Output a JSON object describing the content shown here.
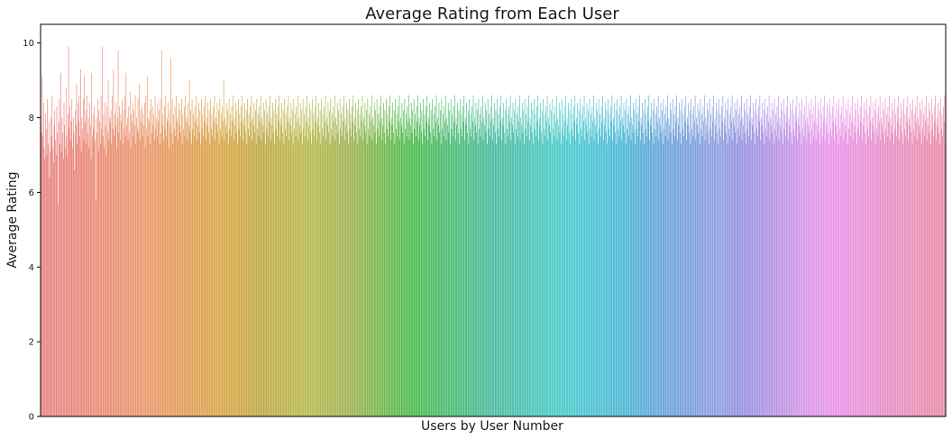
{
  "chart_data": {
    "type": "bar",
    "title": "Average Rating from Each User",
    "xlabel": "Users by User Number",
    "ylabel": "Average Rating",
    "ylim": [
      0,
      10.5
    ],
    "yticks": [
      0,
      2,
      4,
      6,
      8,
      10
    ],
    "ytick_labels": [
      "0",
      "2",
      "4",
      "6",
      "8",
      "10"
    ],
    "xticks_shown": false,
    "grid": false,
    "legend": "none",
    "palette": "husl hue gradient (red → orange → olive → green → teal → blue → purple → pink)",
    "bar_count": 1000,
    "values": [
      7.8,
      7.6,
      9.1,
      7.5,
      8.4,
      7.2,
      6.9,
      8.1,
      7.7,
      7.0,
      8.5,
      7.3,
      7.9,
      6.4,
      7.1,
      8.0,
      7.5,
      8.6,
      7.2,
      6.8,
      7.8,
      8.2,
      7.4,
      7.0,
      8.3,
      7.6,
      5.7,
      7.9,
      8.5,
      7.3,
      9.2,
      7.1,
      8.0,
      7.6,
      6.9,
      8.4,
      7.8,
      7.2,
      8.8,
      7.5,
      7.0,
      8.1,
      9.9,
      7.7,
      8.3,
      7.4,
      7.9,
      8.5,
      7.2,
      8.0,
      7.6,
      6.6,
      8.2,
      7.8,
      8.9,
      7.3,
      8.4,
      7.9,
      8.6,
      7.5,
      9.3,
      7.1,
      8.0,
      7.7,
      8.5,
      7.4,
      9.1,
      7.9,
      8.2,
      7.3,
      8.6,
      7.6,
      8.0,
      7.2,
      8.4,
      7.8,
      6.9,
      9.2,
      7.5,
      8.1,
      7.7,
      8.3,
      7.4,
      5.8,
      8.0,
      7.6,
      8.5,
      7.1,
      8.2,
      7.9,
      7.3,
      8.6,
      7.7,
      9.9,
      7.5,
      8.1,
      7.2,
      8.4,
      7.8,
      7.0,
      8.3,
      7.6,
      9.0,
      7.4,
      8.0,
      7.9,
      8.2,
      7.3,
      8.6,
      7.7,
      9.3,
      7.5,
      8.1,
      7.8,
      8.4,
      7.2,
      8.0,
      9.8,
      7.6,
      8.3,
      7.4,
      8.1,
      7.9,
      8.5,
      7.3,
      8.2,
      7.7,
      8.6,
      7.5,
      9.2,
      7.8,
      8.0,
      7.4,
      8.3,
      7.6,
      8.7,
      7.2,
      8.1,
      7.9,
      8.4,
      7.5,
      8.2,
      7.8,
      8.6,
      7.3,
      8.0,
      7.7,
      8.5,
      7.6,
      8.9,
      7.4,
      8.2,
      7.9,
      8.3,
      7.5,
      8.1,
      7.8,
      8.4,
      7.2,
      8.6,
      7.7,
      9.1,
      7.5,
      8.0,
      7.9,
      8.2,
      7.3,
      8.5,
      7.6,
      8.3,
      7.8,
      8.1,
      7.4,
      8.6,
      7.7,
      8.0,
      7.5,
      8.4,
      7.9,
      8.2,
      7.3,
      8.5,
      7.6,
      9.8,
      7.8,
      8.1,
      7.4,
      8.3,
      7.7,
      8.6,
      7.5,
      8.0,
      7.9,
      8.4,
      7.2,
      8.2,
      7.8,
      9.6,
      7.6,
      8.5,
      7.3,
      8.1,
      7.7,
      8.3,
      7.5,
      8.6,
      7.9,
      8.0,
      7.4,
      8.4,
      7.8,
      8.2,
      7.6,
      8.5,
      7.3,
      8.1,
      7.7,
      8.3,
      7.5,
      8.6,
      7.9,
      8.0,
      7.4,
      8.4,
      7.8,
      9.0,
      7.6,
      8.2,
      7.3,
      8.5,
      7.7,
      8.1,
      7.5,
      8.3,
      7.9,
      8.6,
      7.4,
      8.0,
      7.8,
      8.4,
      7.6,
      8.2,
      7.3,
      8.5,
      7.7,
      8.1,
      7.5,
      8.3,
      7.9,
      8.6,
      7.4,
      8.0,
      7.8,
      8.4,
      7.6,
      8.2,
      7.3,
      8.5,
      7.7,
      8.1,
      7.5,
      8.3,
      7.9,
      8.6,
      7.4,
      8.0,
      7.8,
      8.4,
      7.6,
      8.2,
      7.3,
      8.5,
      7.7,
      8.1,
      7.5,
      8.3,
      7.9,
      9.0,
      7.4,
      8.0,
      7.8,
      8.4,
      7.6,
      8.2,
      7.3,
      8.5,
      7.7,
      8.1,
      7.5,
      8.3,
      7.9,
      8.6,
      7.4,
      8.0,
      7.8,
      8.4,
      7.6,
      8.2,
      7.3,
      8.5,
      7.7,
      8.1,
      7.5,
      8.3,
      7.9,
      8.6,
      7.4,
      8.0,
      7.8,
      8.4,
      7.6,
      8.2,
      7.3,
      8.5,
      7.7,
      8.1,
      7.5,
      8.3,
      7.9,
      8.6,
      7.4,
      8.0,
      7.8,
      8.4,
      7.6,
      8.2,
      7.3,
      8.5,
      7.7,
      8.1,
      7.5,
      8.3,
      7.9,
      8.6,
      7.4,
      8.0,
      7.8,
      8.4,
      7.6,
      8.2,
      7.3,
      8.5,
      7.7,
      8.1,
      7.5,
      8.3,
      7.9,
      8.6,
      7.4,
      8.0,
      7.8,
      8.4,
      7.6,
      8.2,
      7.3,
      8.5,
      7.7,
      8.1,
      7.5,
      8.3,
      7.9,
      8.6,
      7.4,
      8.0,
      7.8,
      8.4,
      7.6,
      8.2,
      7.3,
      8.5,
      7.7,
      8.1,
      7.5,
      8.3,
      7.9,
      8.6,
      7.4,
      8.0,
      7.8,
      8.4,
      7.6,
      8.2,
      7.3,
      8.5,
      7.7,
      8.1,
      7.5,
      8.3,
      7.9,
      8.6,
      7.4,
      8.0,
      7.8,
      8.4,
      7.6,
      8.2,
      7.3,
      8.5,
      7.7,
      8.1,
      7.5,
      8.3,
      7.9,
      8.6,
      7.4,
      8.0,
      7.8,
      8.4,
      7.6,
      8.2,
      7.3,
      8.5,
      7.7,
      8.1,
      7.5,
      8.3,
      7.9,
      8.6,
      7.4,
      8.0,
      7.8,
      8.4,
      7.6,
      8.2,
      7.3,
      8.5,
      7.7,
      8.1,
      7.5,
      8.3,
      7.9,
      8.6,
      7.4,
      8.0,
      7.8,
      8.4,
      7.6,
      8.2,
      7.3,
      8.5,
      7.7,
      8.1,
      7.5,
      8.3,
      7.9,
      8.6,
      7.4,
      8.0,
      7.8,
      8.4,
      7.6,
      8.2,
      7.3,
      8.5,
      7.7,
      8.1,
      7.5,
      8.3,
      7.9,
      8.6,
      7.4,
      8.0,
      7.8,
      8.4,
      7.6,
      8.2,
      7.3,
      8.5,
      7.7,
      8.1,
      7.5,
      8.3,
      7.9,
      8.6,
      7.4,
      8.0,
      7.8,
      8.4,
      7.6,
      8.2,
      7.3,
      8.5,
      7.7,
      8.1,
      7.5,
      8.3,
      7.9,
      8.6,
      7.4,
      8.0,
      7.8,
      8.4,
      7.6,
      8.2,
      7.3,
      8.5,
      7.7,
      8.1,
      7.5,
      8.3,
      7.9,
      8.6,
      7.4,
      8.0,
      7.8,
      8.4,
      7.6,
      8.2,
      7.3,
      8.5,
      7.7,
      8.1,
      7.5,
      8.3,
      7.9,
      8.6,
      7.4,
      8.0,
      7.8,
      8.4,
      7.6,
      8.2,
      7.3,
      8.5,
      7.7,
      8.1,
      7.5,
      8.3,
      7.9,
      8.6,
      7.4,
      8.0,
      7.8,
      8.4,
      7.6,
      8.2,
      7.3,
      8.5,
      7.7,
      8.1,
      7.5,
      8.3,
      7.9,
      8.6,
      7.4,
      8.0,
      7.8,
      8.4,
      7.6,
      8.2,
      7.3,
      8.5,
      7.7,
      8.1,
      7.5,
      8.3,
      7.9,
      8.6,
      7.4,
      8.0,
      7.8,
      8.4,
      7.6,
      8.2,
      7.3,
      8.5,
      7.7,
      8.1,
      7.5,
      8.3,
      7.9,
      8.6,
      7.4,
      8.0,
      7.8,
      8.4,
      7.6,
      8.2,
      7.3,
      8.5,
      7.7,
      8.1,
      7.5,
      8.3,
      7.9,
      8.6,
      7.4,
      8.0,
      7.8,
      8.4,
      7.6,
      8.2,
      7.3,
      8.5,
      7.7,
      8.1,
      7.5,
      8.3,
      7.9,
      8.6,
      7.4,
      8.0,
      7.8,
      8.4,
      7.6,
      8.2,
      7.3,
      8.5,
      7.7,
      8.1,
      7.5,
      8.3,
      7.9,
      8.6,
      7.4,
      8.0,
      7.8,
      8.4,
      7.6,
      8.2,
      7.3,
      8.5,
      7.7,
      8.1,
      7.5,
      8.3,
      7.9,
      8.6,
      7.4,
      8.0,
      7.8,
      8.4,
      7.6,
      8.2,
      7.3,
      8.5,
      7.7,
      8.1,
      7.5,
      8.3,
      7.9,
      8.6,
      7.4,
      8.0,
      7.8,
      8.4,
      7.6,
      8.2,
      7.3,
      8.5,
      7.7,
      8.1,
      7.5,
      8.3,
      7.9,
      8.6,
      7.4,
      8.0,
      7.8,
      8.4,
      7.6,
      8.2,
      7.3,
      8.5,
      7.7,
      8.1,
      7.5,
      8.3,
      7.9,
      8.6,
      7.4,
      8.0,
      7.8,
      8.4,
      7.6,
      8.2,
      7.3,
      8.5,
      7.7,
      8.1,
      7.5,
      8.3,
      7.9,
      8.6,
      7.4,
      8.0,
      7.8,
      8.4,
      7.6,
      8.2,
      7.3,
      8.5,
      7.7,
      8.1,
      7.5,
      8.3,
      7.9,
      8.6,
      7.4,
      8.0,
      7.8,
      8.4,
      7.6,
      8.2,
      7.3,
      8.5,
      7.7,
      8.1,
      7.5,
      8.3,
      7.9,
      8.6,
      7.4,
      8.0,
      7.8,
      8.4,
      7.6,
      8.2,
      7.3,
      8.5,
      7.7,
      8.1,
      7.5,
      8.3,
      7.9,
      8.6,
      7.4,
      8.0,
      7.8,
      8.4,
      7.6,
      8.2,
      7.3,
      8.5,
      7.7,
      8.1,
      7.5,
      8.3,
      7.9,
      8.6,
      7.4,
      8.0,
      7.8,
      8.4,
      7.6,
      8.2,
      7.3,
      8.5,
      7.7,
      8.1,
      7.5,
      8.3,
      7.9,
      8.6,
      7.4,
      8.0,
      7.8,
      8.4,
      7.6,
      8.2,
      7.3,
      8.5,
      7.7,
      8.1,
      7.5,
      8.3,
      7.9,
      8.6,
      7.4,
      8.0,
      7.8,
      8.4,
      7.6,
      8.2,
      7.3,
      8.5,
      7.7,
      8.1,
      7.5,
      8.3,
      7.9,
      8.6,
      7.4,
      8.0,
      7.8,
      8.4,
      7.6,
      8.2,
      7.3,
      8.5,
      7.7,
      8.1,
      7.5,
      8.3,
      7.9,
      8.6,
      7.4,
      8.0,
      7.8,
      8.4,
      7.6,
      8.2,
      7.3,
      8.5,
      7.7,
      8.1,
      7.5,
      8.3,
      7.9,
      8.6,
      7.4,
      8.0,
      7.8,
      8.4,
      7.6,
      8.2,
      7.3,
      8.5,
      7.7,
      8.1,
      7.5,
      8.3,
      7.9,
      8.6,
      7.4,
      8.0,
      7.8,
      8.4,
      7.6,
      8.2,
      7.3,
      8.5,
      7.7,
      8.1,
      7.5,
      8.3,
      7.9,
      8.6,
      7.4,
      8.0,
      7.8,
      8.4,
      7.6,
      8.2,
      7.3,
      8.5,
      7.7,
      8.1,
      7.5,
      8.3,
      7.9,
      8.6,
      7.4,
      8.0,
      7.8,
      8.4,
      7.6,
      8.2,
      7.3,
      8.5,
      7.7,
      8.1,
      7.5,
      8.3,
      7.9,
      8.6,
      7.4,
      8.0,
      7.8,
      8.4,
      7.6,
      8.2,
      7.3,
      8.5,
      7.7,
      8.1,
      7.5,
      8.3,
      7.9,
      8.6,
      7.4,
      8.0,
      7.8,
      8.4,
      7.6,
      8.2,
      7.3,
      8.5,
      7.7,
      8.1,
      7.5,
      8.3,
      7.9,
      8.6,
      7.4,
      8.0,
      7.8,
      8.4,
      7.6,
      8.2,
      7.3,
      8.5,
      7.7,
      8.1,
      7.5,
      8.3,
      7.9,
      8.6,
      7.4,
      8.0,
      7.8,
      8.4,
      7.6,
      8.2,
      7.3,
      8.5,
      7.7,
      8.1,
      7.5,
      8.3,
      7.9,
      8.6,
      7.4,
      8.0,
      7.8,
      8.4,
      7.6,
      8.2,
      7.3,
      8.5,
      7.7,
      8.1,
      7.5,
      8.3,
      7.9,
      8.6,
      7.4,
      8.0,
      7.8,
      8.4,
      7.6,
      8.2,
      7.3,
      8.5,
      7.7,
      8.1,
      7.5,
      8.3,
      7.9,
      8.6,
      7.4,
      8.0,
      7.8,
      8.4,
      7.6,
      8.2,
      7.3,
      8.5,
      7.7,
      8.1,
      7.5,
      8.3,
      7.9,
      8.6,
      7.4,
      8.0,
      7.8,
      8.4,
      7.6,
      8.2,
      7.3,
      8.5,
      7.7,
      8.1,
      7.5,
      8.3,
      7.9,
      8.6,
      7.4,
      8.0,
      7.8,
      8.4,
      7.6,
      8.2,
      7.3,
      8.5,
      7.7,
      8.1,
      7.5,
      8.3,
      7.9,
      8.6,
      7.4,
      8.0,
      7.8,
      8.4,
      7.6,
      8.2,
      7.3,
      8.5,
      7.7,
      8.1,
      7.5,
      8.3,
      7.9,
      8.6,
      7.4,
      8.0,
      7.8,
      8.4,
      7.6,
      8.2,
      7.3,
      8.5,
      7.7,
      8.1,
      7.5,
      8.3,
      7.9,
      8.6,
      7.4,
      8.0,
      7.8,
      8.4,
      7.6,
      8.2,
      7.3,
      8.5,
      7.7,
      8.1,
      7.5,
      8.3,
      7.9,
      8.6,
      7.4,
      8.0,
      7.8,
      8.4,
      7.6,
      8.2,
      7.3,
      8.5,
      7.7,
      8.1,
      7.5,
      8.3,
      7.9,
      8.6,
      7.4,
      8.0,
      7.8,
      8.4,
      7.6,
      8.2,
      7.3,
      8.5,
      7.7,
      8.1,
      7.5,
      8.3,
      7.9,
      8.6,
      7.4,
      8.0,
      7.8,
      8.4,
      7.6,
      8.2,
      7.3,
      8.5,
      7.7,
      8.1,
      7.5,
      8.3,
      7.9,
      8.6,
      7.4,
      8.0,
      7.8,
      8.4,
      7.6,
      8.2,
      7.3,
      8.5,
      7.7,
      8.1,
      7.5,
      8.3,
      7.9,
      8.6,
      7.4,
      8.0,
      7.8,
      8.4,
      7.6,
      8.2,
      7.3,
      8.5,
      7.7,
      8.1,
      7.5,
      8.3,
      7.9,
      8.6,
      7.4,
      8.0,
      7.8,
      8.4,
      7.6,
      8.2,
      7.3,
      8.5,
      7.7,
      8.1,
      7.5,
      8.3,
      7.9,
      8.6,
      7.4,
      8.0,
      7.8,
      8.4,
      7.6,
      8.2,
      7.3,
      8.5,
      7.7,
      8.1,
      7.5,
      8.3,
      7.9,
      8.6,
      7.4,
      8.0,
      7.8,
      8.4,
      7.6,
      8.2,
      7.3,
      8.5,
      7.7,
      8.1,
      7.5,
      8.3,
      7.9,
      8.6,
      7.4,
      8.0,
      7.8,
      8.4,
      7.6,
      8.2,
      7.3,
      8.5,
      7.7,
      8.1,
      7.5,
      8.3,
      7.9,
      8.6,
      7.4,
      8.0,
      7.8,
      8.4,
      7.6,
      8.2,
      7.3,
      8.5,
      7.7,
      8.1,
      7.5,
      8.3,
      7.9,
      8.6,
      7.4,
      8.0,
      7.8,
      8.4,
      7.6,
      8.2,
      7.3,
      8.5,
      7.7,
      8.1,
      7.5,
      8.3,
      7.9,
      8.6,
      7.4,
      8.0,
      7.8,
      8.4,
      7.6,
      8.2,
      7.3,
      8.5,
      7.7,
      8.1,
      7.5,
      8.3,
      7.9,
      8.6,
      7.4,
      8.0,
      7.8,
      8.4,
      7.6,
      8.2,
      7.3,
      8.5,
      7.7,
      8.1,
      7.5,
      8.3,
      7.9,
      8.6,
      7.4,
      8.0,
      7.8,
      8.4,
      7.6,
      8.2,
      7.3,
      8.5,
      7.7,
      8.1,
      7.5,
      8.3,
      7.9,
      8.6,
      7.4,
      8.0,
      7.8,
      8.4,
      7.6,
      8.2,
      7.3,
      8.5,
      7.7,
      8.1,
      7.5,
      8.3,
      7.9,
      8.6,
      7.4,
      8.0,
      7.8,
      8.4,
      7.6,
      8.2,
      7.3,
      8.5,
      7.7,
      8.1,
      7.5,
      8.3,
      7.9,
      8.6,
      7.4,
      8.0,
      7.8,
      8.4,
      7.6,
      8.2,
      7.3,
      8.5,
      7.7,
      8.1,
      7.5,
      8.3,
      7.9,
      8.6,
      7.4,
      8.0,
      7.8,
      8.4,
      7.6,
      8.2,
      7.3,
      8.5,
      7.7,
      8.1,
      7.5,
      8.3,
      7.9,
      8.6,
      7.4,
      8.0,
      7.8,
      8.4,
      7.6,
      8.2,
      7.3,
      8.5,
      7.7,
      8.1,
      7.5,
      8.3,
      7.9,
      8.6,
      7.4,
      8.0,
      7.8,
      8.4,
      7.6,
      8.2,
      7.3,
      8.5,
      7.7,
      8.1,
      7.5,
      8.3,
      7.9,
      8.6,
      7.4,
      8.0,
      7.8,
      8.4,
      7.6,
      8.2,
      7.3,
      8.5,
      7.7,
      8.1,
      7.5,
      8.3,
      7.9,
      8.6,
      7.4,
      8.0,
      7.8,
      8.4,
      7.6,
      8.2,
      7.3,
      8.5,
      7.7,
      8.1,
      7.5,
      8.3,
      7.9,
      8.6,
      7.4,
      8.0,
      7.8,
      8.4,
      7.6,
      8.2,
      7.3,
      8.5,
      7.7,
      8.1,
      7.5,
      8.3,
      7.9,
      8.6,
      7.4,
      8.0,
      7.8,
      8.4,
      7.6,
      8.2,
      7.3,
      8.5,
      7.7,
      8.1,
      7.5,
      8.3,
      7.9,
      8.6,
      7.4
    ]
  }
}
